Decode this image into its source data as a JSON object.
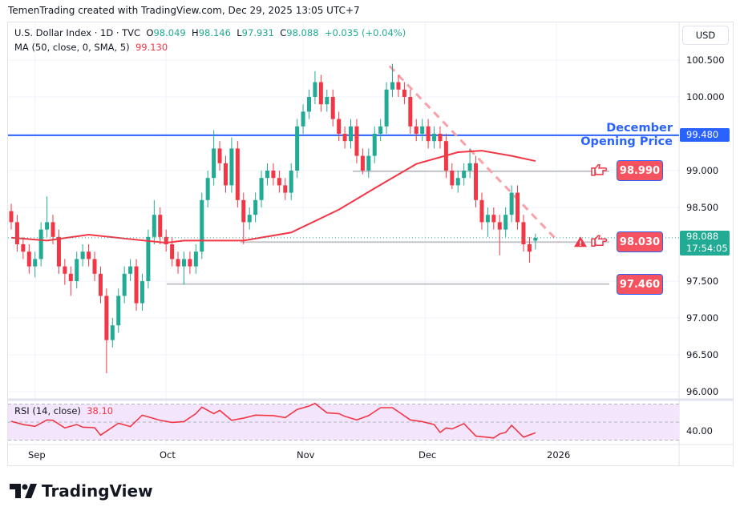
{
  "credit": "TemenTrading created with TradingView.com, Dec 29, 2025 13:05 UTC+7",
  "legend": {
    "symbol": "U.S. Dollar Index · 1D · TVC",
    "o_label": "O",
    "o": "98.049",
    "h_label": "H",
    "h": "98.146",
    "l_label": "L",
    "l": "97.931",
    "c_label": "C",
    "c": "98.088",
    "change": "+0.035 (+0.04%)",
    "ma_label": "MA (50, close, 0, SMA, 5)",
    "ma_value": "99.130"
  },
  "currency": "USD",
  "price_axis": [
    "100.500",
    "100.000",
    "99.000",
    "98.500",
    "97.500",
    "97.000",
    "96.500",
    "96.000"
  ],
  "price_axis_values": [
    100.5,
    100.0,
    99.0,
    98.5,
    97.5,
    97.0,
    96.5,
    96.0
  ],
  "opening_price": {
    "title_line1": "December",
    "title_line2": "Opening Price",
    "value": "99.480",
    "price": 99.48
  },
  "current_price": {
    "value": "98.088",
    "countdown": "17:54:05",
    "price": 98.088
  },
  "levels": [
    {
      "label": "98.990",
      "price": 98.99
    },
    {
      "label": "98.030",
      "price": 98.03
    },
    {
      "label": "97.460",
      "price": 97.46
    }
  ],
  "rsi": {
    "label": "RSI (14, close)",
    "value": "38.10",
    "axis_label": "40.00",
    "bands": [
      70,
      50,
      30
    ]
  },
  "time_axis": [
    {
      "label": "Sep",
      "bar": 4
    },
    {
      "label": "Oct",
      "bar": 26
    },
    {
      "label": "Nov",
      "bar": 49
    },
    {
      "label": "Dec",
      "bar": 69.5
    },
    {
      "label": "2026",
      "bar": 91.5
    }
  ],
  "colors": {
    "up": "#22ab94",
    "down": "#f23645",
    "ma": "#f23645",
    "opening_line": "#2962ff",
    "rsi_line": "#f23645",
    "rsi_bg": "#f3e5fc",
    "trendline": "#f7a1a8"
  },
  "chart_data": {
    "type": "candlestick",
    "ohlc": [
      [
        98.45,
        98.55,
        98.2,
        98.3
      ],
      [
        98.3,
        98.4,
        97.9,
        98.0
      ],
      [
        98.0,
        98.1,
        97.8,
        97.9
      ],
      [
        97.9,
        98.0,
        97.6,
        97.7
      ],
      [
        97.7,
        97.9,
        97.55,
        97.8
      ],
      [
        97.8,
        98.3,
        97.7,
        98.2
      ],
      [
        98.2,
        98.65,
        98.1,
        98.3
      ],
      [
        98.3,
        98.4,
        98.0,
        98.1
      ],
      [
        98.1,
        98.2,
        97.6,
        97.7
      ],
      [
        97.7,
        97.8,
        97.45,
        97.6
      ],
      [
        97.6,
        97.7,
        97.3,
        97.5
      ],
      [
        97.5,
        97.9,
        97.4,
        97.8
      ],
      [
        97.8,
        98.0,
        97.7,
        97.9
      ],
      [
        97.9,
        98.0,
        97.7,
        97.8
      ],
      [
        97.8,
        97.9,
        97.5,
        97.6
      ],
      [
        97.6,
        97.7,
        97.2,
        97.3
      ],
      [
        97.3,
        97.4,
        96.25,
        96.7
      ],
      [
        96.7,
        97.0,
        96.6,
        96.9
      ],
      [
        96.9,
        97.4,
        96.8,
        97.3
      ],
      [
        97.3,
        97.7,
        97.2,
        97.6
      ],
      [
        97.6,
        97.8,
        97.5,
        97.7
      ],
      [
        97.7,
        97.8,
        97.1,
        97.2
      ],
      [
        97.2,
        97.6,
        97.1,
        97.5
      ],
      [
        97.5,
        98.2,
        97.4,
        98.1
      ],
      [
        98.1,
        98.6,
        98.0,
        98.4
      ],
      [
        98.4,
        98.5,
        98.0,
        98.1
      ],
      [
        98.1,
        98.2,
        97.9,
        98.0
      ],
      [
        98.0,
        98.1,
        97.7,
        97.8
      ],
      [
        97.8,
        97.9,
        97.6,
        97.7
      ],
      [
        97.7,
        97.9,
        97.45,
        97.8
      ],
      [
        97.8,
        97.9,
        97.6,
        97.7
      ],
      [
        97.7,
        98.0,
        97.6,
        97.9
      ],
      [
        97.9,
        98.7,
        97.8,
        98.6
      ],
      [
        98.6,
        99.0,
        98.5,
        98.9
      ],
      [
        98.9,
        99.55,
        98.8,
        99.3
      ],
      [
        99.3,
        99.4,
        99.0,
        99.1
      ],
      [
        99.1,
        99.2,
        98.7,
        98.8
      ],
      [
        98.8,
        99.45,
        98.7,
        99.3
      ],
      [
        99.3,
        99.4,
        98.5,
        98.6
      ],
      [
        98.6,
        98.7,
        98.0,
        98.3
      ],
      [
        98.3,
        98.5,
        98.2,
        98.4
      ],
      [
        98.4,
        98.7,
        98.3,
        98.6
      ],
      [
        98.6,
        99.0,
        98.5,
        98.9
      ],
      [
        98.9,
        99.1,
        98.8,
        99.0
      ],
      [
        99.0,
        99.1,
        98.8,
        98.9
      ],
      [
        98.9,
        99.0,
        98.7,
        98.8
      ],
      [
        98.8,
        98.9,
        98.6,
        98.7
      ],
      [
        98.7,
        99.1,
        98.6,
        99.0
      ],
      [
        99.0,
        99.7,
        98.9,
        99.6
      ],
      [
        99.6,
        99.9,
        99.5,
        99.8
      ],
      [
        99.8,
        100.1,
        99.7,
        100.0
      ],
      [
        100.0,
        100.35,
        99.9,
        100.2
      ],
      [
        100.2,
        100.3,
        99.8,
        99.9
      ],
      [
        99.9,
        100.1,
        99.8,
        100.0
      ],
      [
        100.0,
        100.1,
        99.6,
        99.7
      ],
      [
        99.7,
        99.8,
        99.4,
        99.5
      ],
      [
        99.5,
        99.6,
        99.3,
        99.4
      ],
      [
        99.4,
        99.7,
        99.3,
        99.6
      ],
      [
        99.6,
        99.7,
        99.1,
        99.2
      ],
      [
        99.2,
        99.3,
        98.95,
        99.0
      ],
      [
        99.0,
        99.3,
        98.9,
        99.2
      ],
      [
        99.2,
        99.6,
        99.1,
        99.5
      ],
      [
        99.5,
        99.7,
        99.4,
        99.6
      ],
      [
        99.6,
        100.2,
        99.5,
        100.1
      ],
      [
        100.1,
        100.45,
        100.0,
        100.2
      ],
      [
        100.2,
        100.3,
        100.0,
        100.1
      ],
      [
        100.1,
        100.2,
        99.9,
        100.0
      ],
      [
        100.0,
        100.1,
        99.5,
        99.6
      ],
      [
        99.6,
        99.7,
        99.4,
        99.5
      ],
      [
        99.5,
        99.7,
        99.4,
        99.6
      ],
      [
        99.6,
        99.7,
        99.3,
        99.4
      ],
      [
        99.4,
        99.6,
        99.3,
        99.5
      ],
      [
        99.5,
        99.6,
        99.3,
        99.4
      ],
      [
        99.4,
        99.5,
        98.9,
        99.0
      ],
      [
        99.0,
        99.1,
        98.75,
        98.8
      ],
      [
        98.8,
        99.0,
        98.7,
        98.9
      ],
      [
        98.9,
        99.1,
        98.8,
        99.0
      ],
      [
        99.0,
        99.3,
        98.9,
        99.1
      ],
      [
        99.1,
        99.2,
        98.5,
        98.6
      ],
      [
        98.6,
        98.7,
        98.2,
        98.3
      ],
      [
        98.3,
        98.5,
        98.1,
        98.4
      ],
      [
        98.4,
        98.5,
        98.2,
        98.3
      ],
      [
        98.3,
        98.4,
        97.85,
        98.2
      ],
      [
        98.2,
        98.5,
        98.1,
        98.4
      ],
      [
        98.4,
        98.8,
        98.3,
        98.7
      ],
      [
        98.7,
        98.8,
        98.2,
        98.3
      ],
      [
        98.3,
        98.4,
        97.9,
        98.0
      ],
      [
        98.0,
        98.1,
        97.75,
        97.9
      ],
      [
        98.049,
        98.146,
        97.931,
        98.088
      ]
    ],
    "ma50": [
      [
        0,
        98.09
      ],
      [
        6,
        98.05
      ],
      [
        13,
        98.13
      ],
      [
        20,
        98.07
      ],
      [
        26,
        98.02
      ],
      [
        29,
        98.05
      ],
      [
        39,
        98.05
      ],
      [
        47,
        98.16
      ],
      [
        55,
        98.47
      ],
      [
        61,
        98.76
      ],
      [
        68,
        99.09
      ],
      [
        75,
        99.25
      ],
      [
        79,
        99.27
      ],
      [
        84,
        99.2
      ],
      [
        88,
        99.13
      ]
    ],
    "rsi14": [
      [
        0,
        50.9
      ],
      [
        2,
        47.3
      ],
      [
        4,
        45.3
      ],
      [
        6,
        52.4
      ],
      [
        7,
        52
      ],
      [
        9,
        43.5
      ],
      [
        11,
        47.3
      ],
      [
        12,
        44.4
      ],
      [
        14,
        43.8
      ],
      [
        15,
        35.5
      ],
      [
        18,
        48.8
      ],
      [
        20,
        45
      ],
      [
        22,
        57.7
      ],
      [
        25,
        52
      ],
      [
        27,
        49.6
      ],
      [
        29,
        50.5
      ],
      [
        31,
        59.4
      ],
      [
        32,
        66.6
      ],
      [
        34,
        59.4
      ],
      [
        35,
        63
      ],
      [
        37,
        52
      ],
      [
        39,
        54.4
      ],
      [
        41,
        57.7
      ],
      [
        44,
        57.2
      ],
      [
        46,
        55
      ],
      [
        48,
        64
      ],
      [
        50,
        67.8
      ],
      [
        51,
        70.7
      ],
      [
        53,
        60.3
      ],
      [
        55,
        59.4
      ],
      [
        56,
        56.4
      ],
      [
        58,
        52.4
      ],
      [
        60,
        57.2
      ],
      [
        62,
        66
      ],
      [
        64,
        66
      ],
      [
        67,
        52.4
      ],
      [
        69,
        50.5
      ],
      [
        71,
        47.3
      ],
      [
        72,
        38.5
      ],
      [
        73,
        43.5
      ],
      [
        74,
        42.4
      ],
      [
        76,
        48.3
      ],
      [
        78,
        34.5
      ],
      [
        81,
        32.4
      ],
      [
        82,
        36.9
      ],
      [
        83,
        38.5
      ],
      [
        84,
        46.4
      ],
      [
        86,
        33.3
      ],
      [
        88,
        38.1
      ]
    ],
    "trendline": [
      [
        63.5,
        100.42
      ],
      [
        93,
        98.03
      ]
    ],
    "ylim": [
      96.0,
      100.5
    ],
    "rsi_ylim": [
      30,
      70
    ]
  },
  "brand": "TradingView"
}
